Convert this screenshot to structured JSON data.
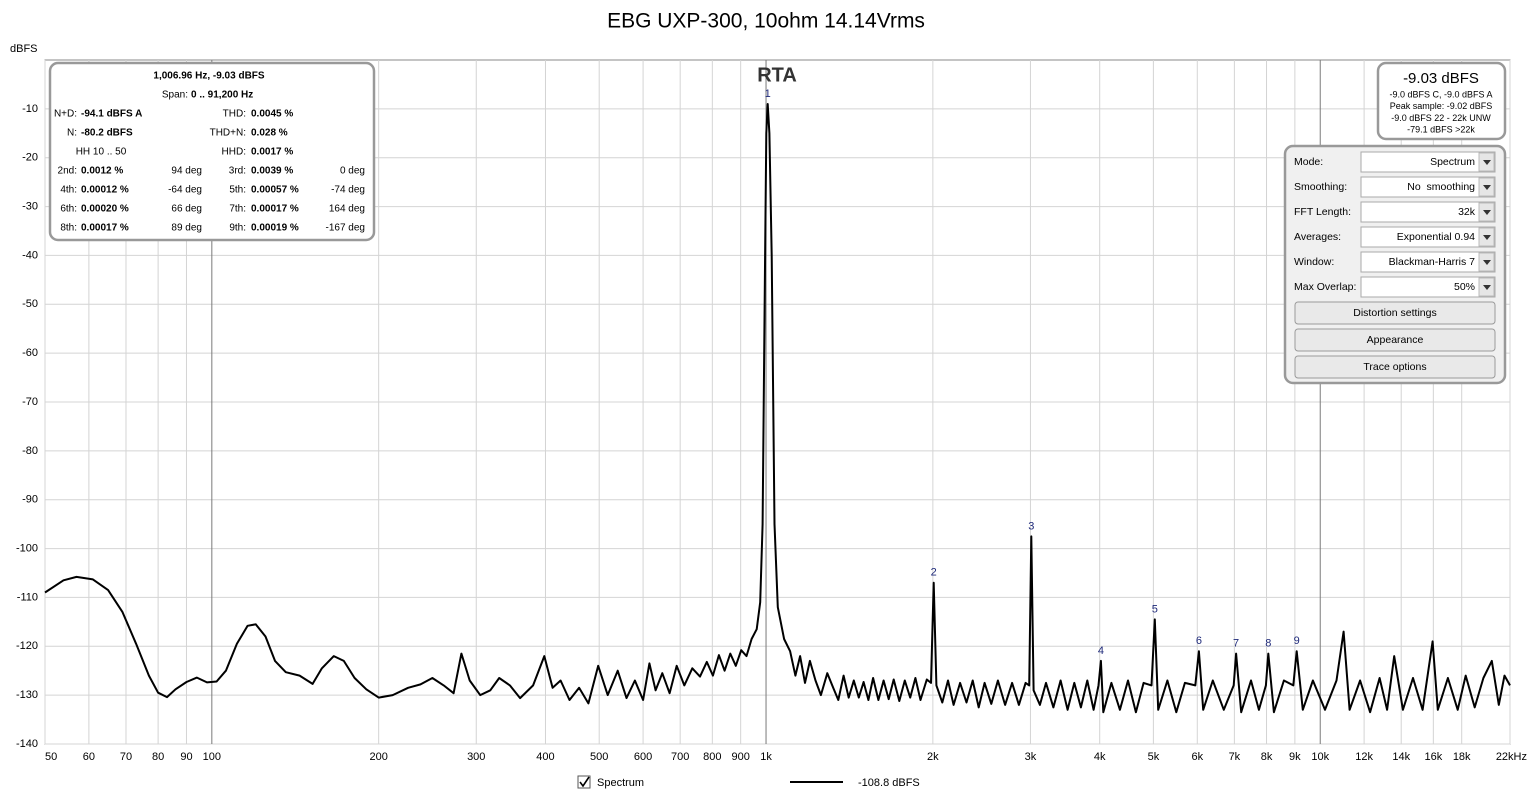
{
  "chart_data": {
    "type": "line",
    "title": "EBG UXP-300, 10ohm 14.14Vrms",
    "plot_title": "RTA",
    "y_label": "dBFS",
    "x_scale": "log",
    "xlim": [
      50,
      22000
    ],
    "ylim": [
      -140,
      0
    ],
    "grid": true,
    "xticks": [
      50,
      60,
      70,
      80,
      90,
      100,
      200,
      300,
      400,
      500,
      600,
      700,
      800,
      900,
      {
        "value": 1000,
        "label": "1k"
      },
      {
        "value": 2000,
        "label": "2k"
      },
      {
        "value": 3000,
        "label": "3k"
      },
      {
        "value": 4000,
        "label": "4k"
      },
      {
        "value": 5000,
        "label": "5k"
      },
      {
        "value": 6000,
        "label": "6k"
      },
      {
        "value": 7000,
        "label": "7k"
      },
      {
        "value": 8000,
        "label": "8k"
      },
      {
        "value": 9000,
        "label": "9k"
      },
      {
        "value": 10000,
        "label": "10k"
      },
      {
        "value": 12000,
        "label": "12k"
      },
      {
        "value": 14000,
        "label": "14k"
      },
      {
        "value": 16000,
        "label": "16k"
      },
      {
        "value": 18000,
        "label": "18k"
      },
      {
        "value": 22000,
        "label": "22kHz"
      }
    ],
    "yticks": [
      -140,
      -130,
      -120,
      -110,
      -100,
      -90,
      -80,
      -70,
      -60,
      -50,
      -40,
      -30,
      -20,
      -10
    ],
    "series": [
      {
        "name": "Spectrum",
        "color": "#000000",
        "x": [
          50,
          54,
          57,
          61,
          65,
          69,
          73,
          77,
          80,
          83,
          86,
          90,
          94,
          98,
          102,
          106,
          111,
          116,
          120,
          125,
          130,
          136,
          144,
          152,
          158,
          166,
          173,
          181,
          190,
          200,
          212,
          226,
          238,
          250,
          262,
          273,
          282,
          292,
          305,
          318,
          330,
          345,
          360,
          380,
          398,
          412,
          426,
          442,
          460,
          478,
          498,
          518,
          540,
          560,
          580,
          600,
          616,
          632,
          650,
          670,
          690,
          712,
          736,
          760,
          782,
          802,
          822,
          842,
          862,
          882,
          902,
          922,
          942,
          962,
          976,
          986,
          996,
          1001,
          1007,
          1014,
          1024,
          1036,
          1050,
          1078,
          1105,
          1130,
          1152,
          1176,
          1200,
          1228,
          1256,
          1290,
          1322,
          1350,
          1380,
          1410,
          1440,
          1470,
          1500,
          1530,
          1560,
          1595,
          1630,
          1665,
          1700,
          1740,
          1780,
          1820,
          1860,
          1900,
          1950,
          1985,
          2007,
          2030,
          2080,
          2130,
          2180,
          2240,
          2300,
          2360,
          2420,
          2480,
          2550,
          2620,
          2700,
          2780,
          2860,
          2940,
          2985,
          3010,
          3040,
          3120,
          3200,
          3300,
          3400,
          3500,
          3600,
          3700,
          3800,
          3900,
          3980,
          4020,
          4060,
          4200,
          4350,
          4500,
          4650,
          4800,
          4960,
          5030,
          5100,
          5300,
          5500,
          5700,
          5950,
          6040,
          6150,
          6400,
          6700,
          6980,
          7050,
          7200,
          7500,
          7750,
          7980,
          8060,
          8250,
          8600,
          8940,
          9070,
          9300,
          9700,
          10200,
          10700,
          11020,
          11300,
          11800,
          12300,
          12800,
          13200,
          13600,
          14100,
          14700,
          15300,
          15950,
          16300,
          17000,
          17700,
          18300,
          19000,
          19700,
          20400,
          21000,
          21500,
          22000
        ],
        "values": [
          -109,
          -106.5,
          -105.8,
          -106.3,
          -108.5,
          -113,
          -119.5,
          -126,
          -129.5,
          -130.4,
          -128.8,
          -127.3,
          -126.4,
          -127.4,
          -127.2,
          -125,
          -119.5,
          -115.8,
          -115.5,
          -118,
          -123,
          -125.3,
          -126,
          -127.7,
          -124.5,
          -122,
          -123,
          -126.5,
          -128.8,
          -130.5,
          -130,
          -128.5,
          -127.8,
          -126.5,
          -128,
          -129.6,
          -121.5,
          -127,
          -130,
          -129,
          -126.5,
          -128,
          -130.6,
          -128,
          -122,
          -128.5,
          -127,
          -131,
          -128.5,
          -131.7,
          -124,
          -130,
          -125,
          -130.6,
          -127,
          -131,
          -123.5,
          -129,
          -125.5,
          -129.6,
          -124,
          -128,
          -124.5,
          -126.2,
          -123.2,
          -126,
          -121.8,
          -125,
          -121.5,
          -124,
          -120.8,
          -122,
          -118.5,
          -116.5,
          -111,
          -95,
          -40,
          -15,
          -9,
          -15,
          -40,
          -95,
          -112,
          -118.5,
          -121,
          -126,
          -122,
          -127.5,
          -123,
          -127,
          -130,
          -125.5,
          -128.5,
          -131,
          -126,
          -130.5,
          -127,
          -130.5,
          -127.3,
          -131,
          -126.5,
          -131,
          -127,
          -130.8,
          -126.8,
          -131.2,
          -127,
          -130.5,
          -126.5,
          -131,
          -126.8,
          -127.5,
          -107,
          -128,
          -131.5,
          -127,
          -132,
          -127.5,
          -131.5,
          -127,
          -132.5,
          -127.5,
          -131.8,
          -127,
          -132,
          -127.5,
          -132,
          -127.5,
          -128,
          -97.5,
          -129,
          -132,
          -127.5,
          -132.5,
          -127,
          -133,
          -127.5,
          -132.5,
          -127,
          -133,
          -128,
          -123,
          -133.5,
          -127.5,
          -133,
          -127,
          -133.5,
          -127.5,
          -128,
          -114.5,
          -133,
          -127,
          -133.5,
          -127.5,
          -128,
          -121,
          -133,
          -127,
          -133,
          -128,
          -121.5,
          -133.5,
          -127,
          -133,
          -128,
          -121.5,
          -133.5,
          -127,
          -128,
          -121,
          -133,
          -127,
          -133,
          -127,
          -117,
          -133,
          -127,
          -133.5,
          -126.5,
          -133,
          -122,
          -133,
          -126.5,
          -133,
          -119,
          -133,
          -126.5,
          -133,
          -126,
          -132.5,
          -126.5,
          -123,
          -132,
          -126,
          -128
        ]
      }
    ],
    "harmonic_markers": [
      {
        "label": "1",
        "x": 1007,
        "y": -9
      },
      {
        "label": "2",
        "x": 2007,
        "y": -107
      },
      {
        "label": "3",
        "x": 3010,
        "y": -97.5
      },
      {
        "label": "4",
        "x": 4020,
        "y": -123
      },
      {
        "label": "5",
        "x": 5030,
        "y": -114.5
      },
      {
        "label": "6",
        "x": 6040,
        "y": -121
      },
      {
        "label": "7",
        "x": 7050,
        "y": -121.5
      },
      {
        "label": "8",
        "x": 8060,
        "y": -121.5
      },
      {
        "label": "9",
        "x": 9070,
        "y": -121
      }
    ],
    "legend_reading": "-108.8 dBFS"
  },
  "info_box": {
    "header": "1,006.96 Hz, -9.03 dBFS",
    "span_label": "Span:",
    "span": "0 .. 91,200 Hz",
    "summary": [
      [
        "N+D:",
        "-94.1 dBFS A",
        "THD:",
        "0.0045 %"
      ],
      [
        "N:",
        "-80.2 dBFS",
        "THD+N:",
        "0.028 %"
      ],
      [
        "HH 10 .. 50",
        "",
        "HHD:",
        "0.0017 %"
      ]
    ],
    "harmonics": [
      [
        "2nd:",
        "0.0012 %",
        "94 deg",
        "3rd:",
        "0.0039 %",
        "0 deg"
      ],
      [
        "4th:",
        "0.00012 %",
        "-64 deg",
        "5th:",
        "0.00057 %",
        "-74 deg"
      ],
      [
        "6th:",
        "0.00020 %",
        "66 deg",
        "7th:",
        "0.00017 %",
        "164 deg"
      ],
      [
        "8th:",
        "0.00017 %",
        "89 deg",
        "9th:",
        "0.00019 %",
        "-167 deg"
      ]
    ]
  },
  "level_meter": {
    "level": "-9.03 dBFS",
    "lines": [
      "-9.0 dBFS C, -9.0 dBFS A",
      "Peak sample: -9.02 dBFS",
      "-9.0 dBFS 22 - 22k UNW",
      "-79.1 dBFS >22k"
    ]
  },
  "controls": {
    "rows": [
      {
        "label": "Mode:",
        "value": "Spectrum"
      },
      {
        "label": "Smoothing:",
        "value": "No  smoothing"
      },
      {
        "label": "FFT Length:",
        "value": "32k"
      },
      {
        "label": "Averages:",
        "value": "Exponential 0.94"
      },
      {
        "label": "Window:",
        "value": "Blackman-Harris 7"
      },
      {
        "label": "Max Overlap:",
        "value": "50%"
      }
    ],
    "buttons": [
      "Distortion settings",
      "Appearance",
      "Trace options"
    ]
  }
}
